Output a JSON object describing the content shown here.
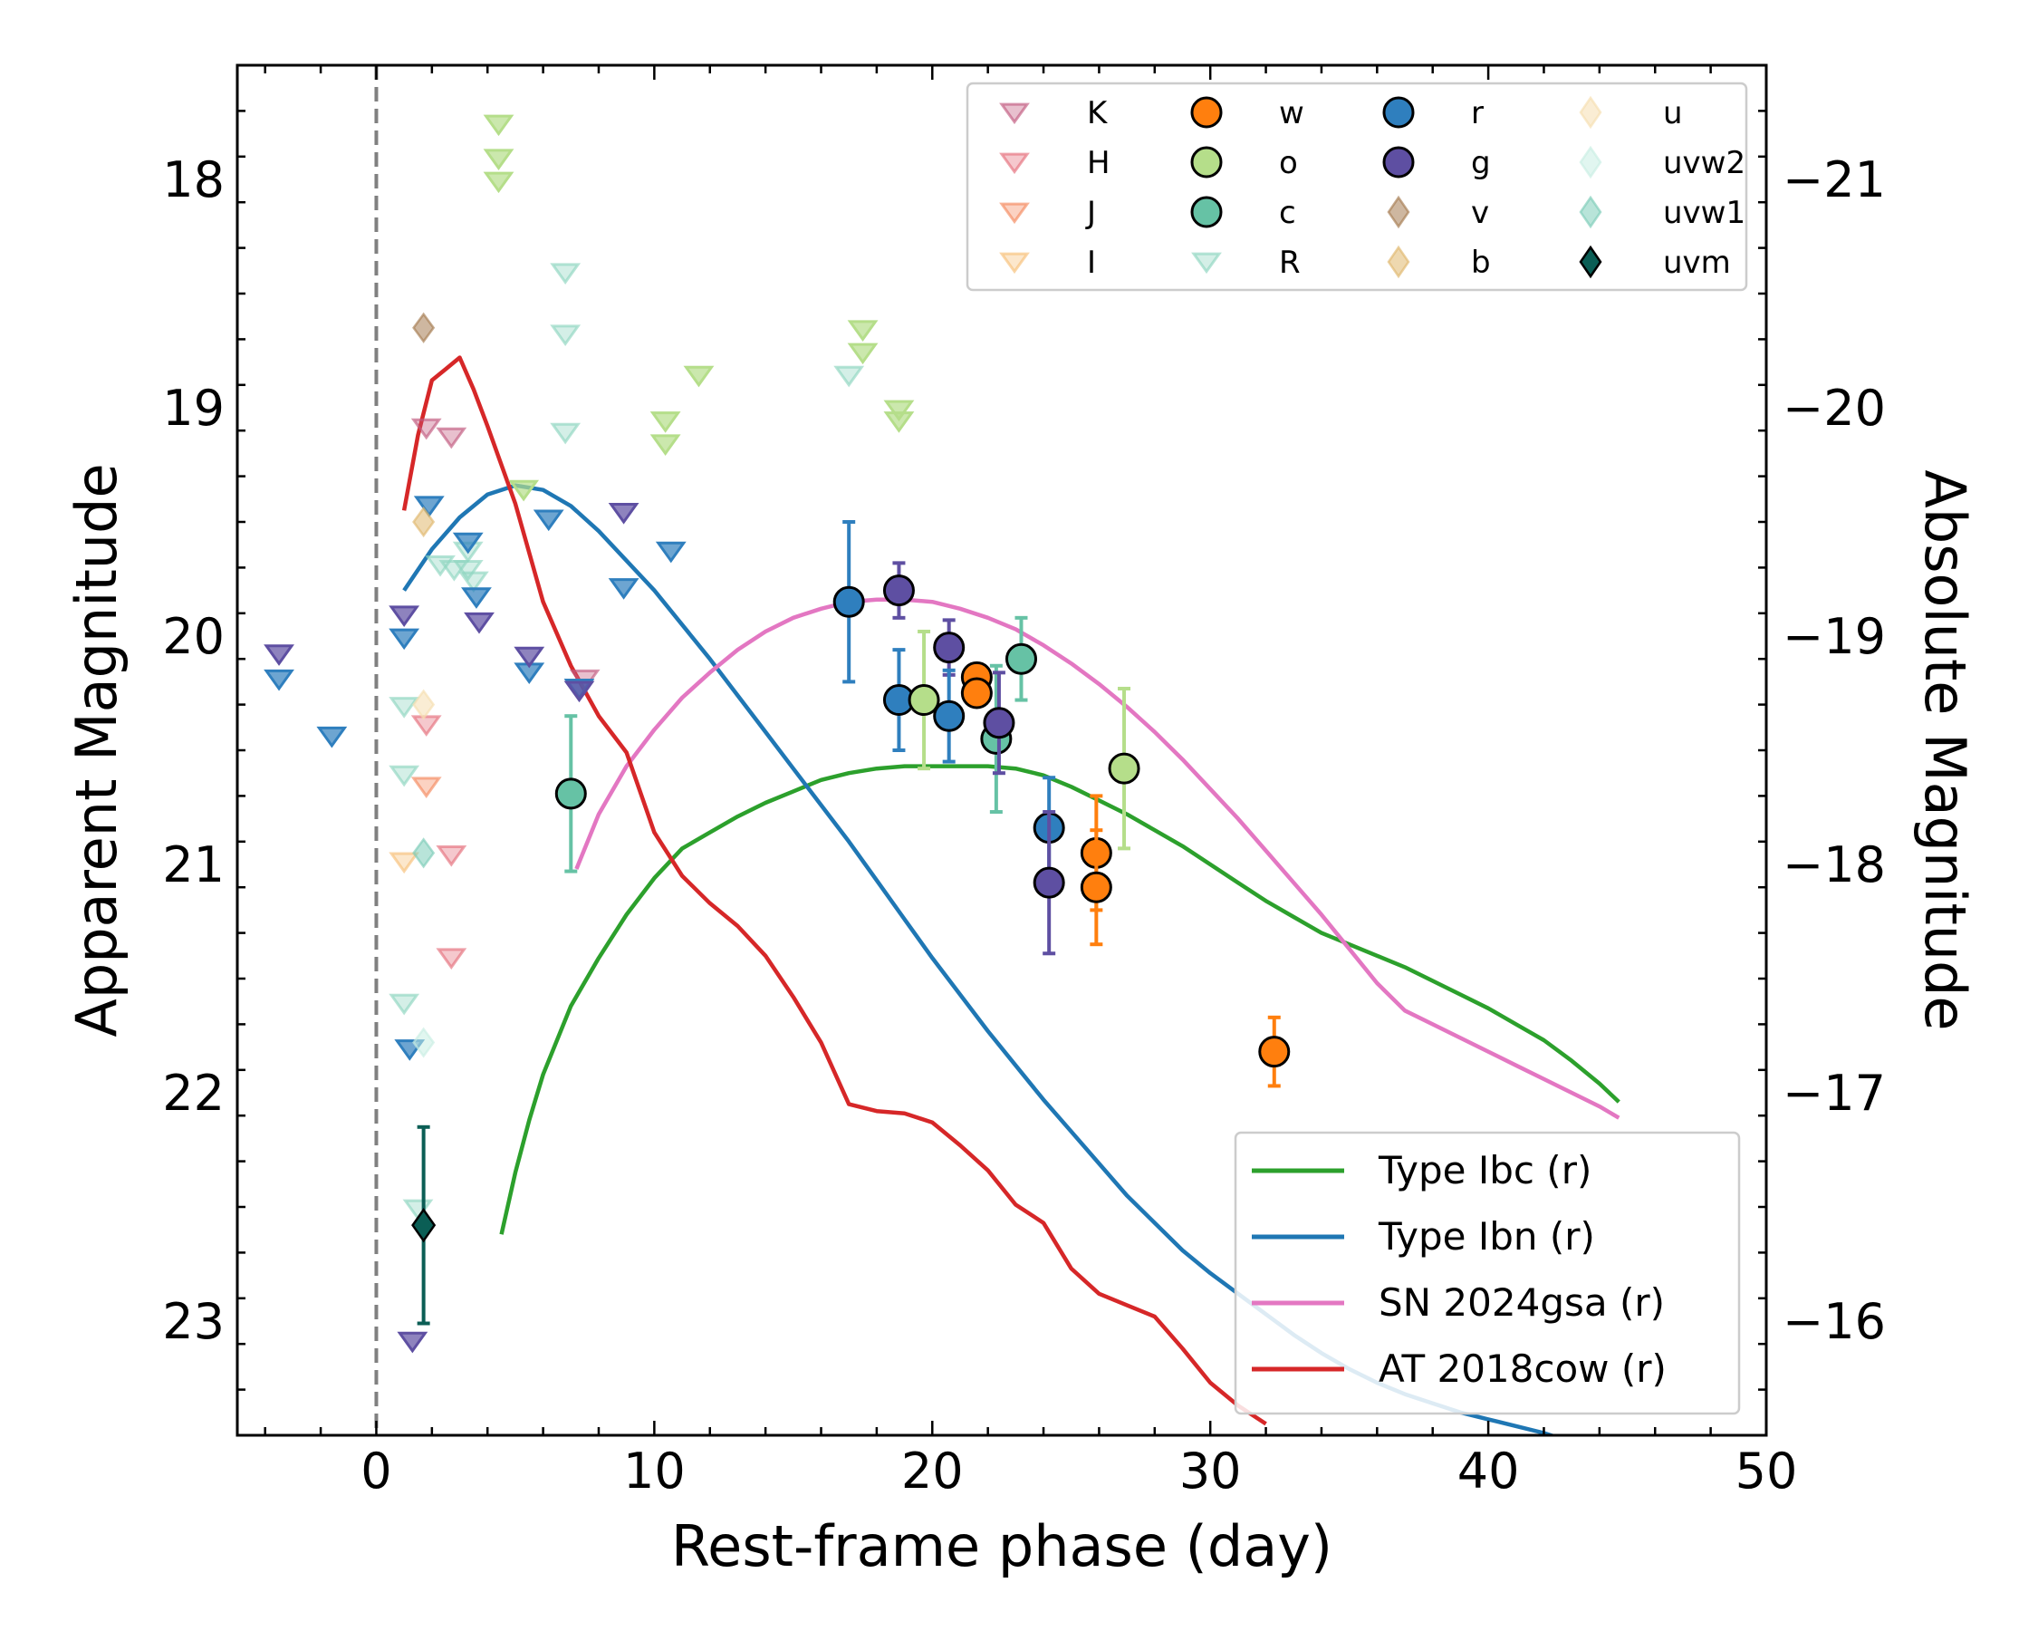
{
  "chart_data": {
    "type": "scatter",
    "xlabel": "Rest-frame phase (day)",
    "ylabel": "Apparent Magnitude",
    "y2label": "Absolute Magnitude",
    "xlim": [
      -5,
      50
    ],
    "ylim": [
      23.5,
      17.5
    ],
    "y2lim": [
      -15.5,
      -21.5
    ],
    "xticks": [
      0,
      10,
      20,
      30,
      40,
      50
    ],
    "yticks": [
      18,
      19,
      20,
      21,
      22,
      23
    ],
    "y2ticks": [
      -21,
      -20,
      -19,
      -18,
      -17,
      -16
    ],
    "reference_line_x": 0,
    "symbol_legend": {
      "position": "top-right",
      "entries": [
        {
          "label": "K",
          "marker": "tri",
          "color": "#c25b80",
          "alpha": 0.55
        },
        {
          "label": "H",
          "marker": "tri",
          "color": "#e5707d",
          "alpha": 0.55
        },
        {
          "label": "J",
          "marker": "tri",
          "color": "#f58b60",
          "alpha": 0.55
        },
        {
          "label": "I",
          "marker": "tri",
          "color": "#f8c07a",
          "alpha": 0.55
        },
        {
          "label": "w",
          "marker": "circle",
          "color": "#ff7f0e",
          "alpha": 1
        },
        {
          "label": "o",
          "marker": "circle",
          "color": "#b5de8a",
          "alpha": 1
        },
        {
          "label": "c",
          "marker": "circle",
          "color": "#66c2a5",
          "alpha": 1
        },
        {
          "label": "R",
          "marker": "tri",
          "color": "#8fd6c0",
          "alpha": 0.55
        },
        {
          "label": "r",
          "marker": "circle",
          "color": "#2f7fbe",
          "alpha": 1
        },
        {
          "label": "g",
          "marker": "circle",
          "color": "#5e4fa2",
          "alpha": 1
        },
        {
          "label": "v",
          "marker": "diamond",
          "color": "#a67c52",
          "alpha": 0.55
        },
        {
          "label": "b",
          "marker": "diamond",
          "color": "#e0b86e",
          "alpha": 0.55
        },
        {
          "label": "u",
          "marker": "diamond",
          "color": "#f6deb0",
          "alpha": 0.55
        },
        {
          "label": "uvw2",
          "marker": "diamond",
          "color": "#c9eee4",
          "alpha": 0.55
        },
        {
          "label": "uvw1",
          "marker": "diamond",
          "color": "#7ecdb9",
          "alpha": 0.55
        },
        {
          "label": "uvm",
          "marker": "diamond",
          "color": "#0b5e55",
          "alpha": 1
        }
      ]
    },
    "detections": [
      {
        "band": "c",
        "x": 7.0,
        "y": 20.69,
        "yerr": 0.34
      },
      {
        "band": "r",
        "x": 17.0,
        "y": 19.85,
        "yerr": 0.35
      },
      {
        "band": "g",
        "x": 18.8,
        "y": 19.8,
        "yerr": 0.12
      },
      {
        "band": "r",
        "x": 18.8,
        "y": 20.28,
        "yerr": 0.22
      },
      {
        "band": "o",
        "x": 19.7,
        "y": 20.28,
        "yerr": 0.3
      },
      {
        "band": "g",
        "x": 20.6,
        "y": 20.05,
        "yerr": 0.12
      },
      {
        "band": "r",
        "x": 20.6,
        "y": 20.35,
        "yerr": 0.2
      },
      {
        "band": "w",
        "x": 21.6,
        "y": 20.18,
        "yerr": 0.05
      },
      {
        "band": "w",
        "x": 21.6,
        "y": 20.25,
        "yerr": 0.05
      },
      {
        "band": "c",
        "x": 22.3,
        "y": 20.45,
        "yerr": 0.32
      },
      {
        "band": "g",
        "x": 22.4,
        "y": 20.38,
        "yerr": 0.22
      },
      {
        "band": "c",
        "x": 23.2,
        "y": 20.1,
        "yerr": 0.18
      },
      {
        "band": "r",
        "x": 24.2,
        "y": 20.84,
        "yerr": 0.22
      },
      {
        "band": "g",
        "x": 24.2,
        "y": 21.08,
        "yerr": 0.31
      },
      {
        "band": "w",
        "x": 25.9,
        "y": 20.95,
        "yerr": 0.25
      },
      {
        "band": "w",
        "x": 25.9,
        "y": 21.1,
        "yerr": 0.25
      },
      {
        "band": "o",
        "x": 26.9,
        "y": 20.58,
        "yerr": 0.35
      },
      {
        "band": "w",
        "x": 32.3,
        "y": 21.82,
        "yerr": 0.15
      },
      {
        "band": "uvm",
        "x": 1.7,
        "y": 22.58,
        "yerr": 0.43
      }
    ],
    "upper_limits": [
      {
        "band": "K",
        "x": 1.8,
        "y": 19.08
      },
      {
        "band": "K",
        "x": 2.7,
        "y": 19.12
      },
      {
        "band": "K",
        "x": 7.5,
        "y": 20.18
      },
      {
        "band": "H",
        "x": 1.8,
        "y": 20.38
      },
      {
        "band": "H",
        "x": 2.7,
        "y": 20.95
      },
      {
        "band": "H",
        "x": 2.7,
        "y": 21.4
      },
      {
        "band": "J",
        "x": 1.8,
        "y": 20.65
      },
      {
        "band": "I",
        "x": 1.0,
        "y": 20.98
      },
      {
        "band": "o",
        "x": 4.4,
        "y": 17.75
      },
      {
        "band": "o",
        "x": 4.4,
        "y": 17.9
      },
      {
        "band": "o",
        "x": 4.4,
        "y": 18.0
      },
      {
        "band": "o",
        "x": 5.3,
        "y": 19.35
      },
      {
        "band": "o",
        "x": 10.4,
        "y": 19.05
      },
      {
        "band": "o",
        "x": 10.4,
        "y": 19.15
      },
      {
        "band": "o",
        "x": 11.6,
        "y": 18.85
      },
      {
        "band": "o",
        "x": 17.5,
        "y": 18.65
      },
      {
        "band": "o",
        "x": 17.5,
        "y": 18.75
      },
      {
        "band": "o",
        "x": 18.8,
        "y": 19.0
      },
      {
        "band": "o",
        "x": 18.8,
        "y": 19.05
      },
      {
        "band": "R",
        "x": 6.8,
        "y": 18.4
      },
      {
        "band": "R",
        "x": 6.8,
        "y": 18.67
      },
      {
        "band": "R",
        "x": 6.8,
        "y": 19.1
      },
      {
        "band": "R",
        "x": 2.3,
        "y": 19.68
      },
      {
        "band": "R",
        "x": 2.8,
        "y": 19.7
      },
      {
        "band": "R",
        "x": 3.3,
        "y": 19.62
      },
      {
        "band": "R",
        "x": 3.3,
        "y": 19.7
      },
      {
        "band": "R",
        "x": 3.5,
        "y": 19.75
      },
      {
        "band": "R",
        "x": 1.0,
        "y": 20.3
      },
      {
        "band": "R",
        "x": 1.0,
        "y": 20.6
      },
      {
        "band": "R",
        "x": 1.0,
        "y": 21.6
      },
      {
        "band": "R",
        "x": 1.5,
        "y": 22.5
      },
      {
        "band": "R",
        "x": 17.0,
        "y": 18.85
      },
      {
        "band": "r",
        "x": 1.9,
        "y": 19.42
      },
      {
        "band": "r",
        "x": 1.0,
        "y": 20.0
      },
      {
        "band": "r",
        "x": 1.2,
        "y": 21.8
      },
      {
        "band": "r",
        "x": 5.5,
        "y": 20.15
      },
      {
        "band": "r",
        "x": 6.2,
        "y": 19.48
      },
      {
        "band": "r",
        "x": 7.3,
        "y": 20.22
      },
      {
        "band": "r",
        "x": 8.9,
        "y": 19.78
      },
      {
        "band": "r",
        "x": 10.6,
        "y": 19.62
      },
      {
        "band": "r",
        "x": 3.3,
        "y": 19.58
      },
      {
        "band": "r",
        "x": 3.6,
        "y": 19.82
      },
      {
        "band": "r",
        "x": -3.5,
        "y": 20.18
      },
      {
        "band": "r",
        "x": -1.6,
        "y": 20.43
      },
      {
        "band": "g",
        "x": -3.5,
        "y": 20.07
      },
      {
        "band": "g",
        "x": 1.0,
        "y": 19.9
      },
      {
        "band": "g",
        "x": 3.7,
        "y": 19.93
      },
      {
        "band": "g",
        "x": 5.5,
        "y": 20.08
      },
      {
        "band": "g",
        "x": 7.3,
        "y": 20.23
      },
      {
        "band": "g",
        "x": 8.9,
        "y": 19.45
      },
      {
        "band": "g",
        "x": 1.3,
        "y": 23.08
      }
    ],
    "limit_diamonds": [
      {
        "band": "v",
        "x": 1.7,
        "y": 18.65
      },
      {
        "band": "b",
        "x": 1.7,
        "y": 19.5
      },
      {
        "band": "u",
        "x": 1.7,
        "y": 20.3
      },
      {
        "band": "uvw2",
        "x": 1.7,
        "y": 21.78
      },
      {
        "band": "uvw1",
        "x": 1.7,
        "y": 20.95
      }
    ],
    "series": [
      {
        "name": "Type Ibc (r)",
        "color": "#2ca02c",
        "x": [
          4.5,
          5.0,
          5.5,
          6.0,
          7.0,
          8.0,
          9.0,
          10.0,
          11.0,
          12.0,
          13.0,
          14.0,
          15.0,
          16.0,
          17.0,
          18.0,
          19.0,
          20.0,
          21.0,
          22.0,
          23.0,
          24.0,
          25.0,
          26.0,
          27.0,
          28.0,
          29.0,
          30.0,
          31.0,
          32.0,
          33.0,
          34.0,
          35.0,
          36.0,
          37.0,
          38.0,
          39.0,
          40.0,
          41.0,
          42.0,
          43.0,
          44.0,
          44.7
        ],
        "y": [
          22.62,
          22.35,
          22.12,
          21.92,
          21.62,
          21.41,
          21.22,
          21.06,
          20.93,
          20.86,
          20.79,
          20.73,
          20.68,
          20.63,
          20.6,
          20.58,
          20.57,
          20.57,
          20.57,
          20.57,
          20.58,
          20.61,
          20.66,
          20.72,
          20.78,
          20.85,
          20.92,
          21.0,
          21.08,
          21.16,
          21.23,
          21.3,
          21.35,
          21.4,
          21.45,
          21.51,
          21.57,
          21.63,
          21.7,
          21.77,
          21.86,
          21.96,
          22.04
        ]
      },
      {
        "name": "Type Ibn (r)",
        "color": "#1f77b4",
        "x": [
          1.0,
          2.0,
          3.0,
          4.0,
          5.0,
          6.0,
          7.0,
          8.0,
          9.0,
          10.0,
          11.0,
          12.0,
          13.0,
          14.0,
          15.0,
          16.0,
          17.0,
          18.0,
          19.0,
          20.0,
          21.0,
          22.0,
          23.0,
          24.0,
          25.0,
          26.0,
          27.0,
          28.0,
          29.0,
          30.0,
          31.0,
          32.0,
          33.0,
          34.0,
          35.0,
          36.0,
          37.0,
          38.0,
          39.0,
          40.0,
          41.0,
          42.0,
          42.5
        ],
        "y": [
          19.8,
          19.62,
          19.48,
          19.38,
          19.34,
          19.36,
          19.43,
          19.54,
          19.67,
          19.8,
          19.95,
          20.1,
          20.26,
          20.42,
          20.58,
          20.74,
          20.9,
          21.07,
          21.24,
          21.41,
          21.57,
          21.73,
          21.88,
          22.03,
          22.17,
          22.31,
          22.45,
          22.57,
          22.69,
          22.79,
          22.88,
          22.97,
          23.06,
          23.14,
          23.21,
          23.27,
          23.32,
          23.36,
          23.4,
          23.43,
          23.46,
          23.49,
          23.51
        ]
      },
      {
        "name": "SN 2024gsa (r)",
        "color": "#e377c2",
        "x": [
          7.2,
          8.0,
          9.0,
          10.0,
          11.0,
          12.0,
          13.0,
          14.0,
          15.0,
          16.0,
          17.0,
          18.0,
          19.0,
          20.0,
          21.0,
          22.0,
          23.0,
          24.0,
          25.0,
          26.0,
          27.0,
          28.0,
          29.0,
          30.0,
          31.0,
          32.0,
          33.0,
          34.0,
          35.0,
          36.0,
          37.0,
          38.0,
          39.0,
          40.0,
          41.0,
          42.0,
          43.0,
          44.0,
          44.7
        ],
        "y": [
          21.02,
          20.78,
          20.57,
          20.41,
          20.27,
          20.16,
          20.06,
          19.98,
          19.92,
          19.88,
          19.85,
          19.84,
          19.84,
          19.85,
          19.88,
          19.92,
          19.97,
          20.04,
          20.12,
          20.21,
          20.31,
          20.42,
          20.54,
          20.67,
          20.8,
          20.94,
          21.08,
          21.22,
          21.37,
          21.52,
          21.64,
          21.7,
          21.76,
          21.82,
          21.88,
          21.94,
          22.0,
          22.06,
          22.11
        ]
      },
      {
        "name": "AT 2018cow (r)",
        "color": "#d62728",
        "x": [
          1.0,
          1.5,
          2.0,
          2.5,
          3.0,
          3.5,
          4.0,
          5.0,
          6.0,
          7.0,
          8.0,
          9.0,
          10.0,
          11.0,
          12.0,
          13.0,
          14.0,
          15.0,
          16.0,
          17.0,
          18.0,
          19.0,
          20.0,
          21.0,
          22.0,
          23.0,
          24.0,
          25.0,
          26.0,
          27.0,
          28.0,
          29.0,
          30.0,
          31.0,
          32.0
        ],
        "y": [
          19.45,
          19.12,
          18.88,
          18.83,
          18.78,
          18.92,
          19.08,
          19.42,
          19.85,
          20.13,
          20.35,
          20.51,
          20.86,
          21.05,
          21.17,
          21.27,
          21.4,
          21.58,
          21.78,
          22.05,
          22.08,
          22.09,
          22.13,
          22.23,
          22.34,
          22.49,
          22.57,
          22.77,
          22.88,
          22.93,
          22.98,
          23.12,
          23.27,
          23.37,
          23.45
        ]
      }
    ],
    "line_legend_position": "bottom-right"
  }
}
